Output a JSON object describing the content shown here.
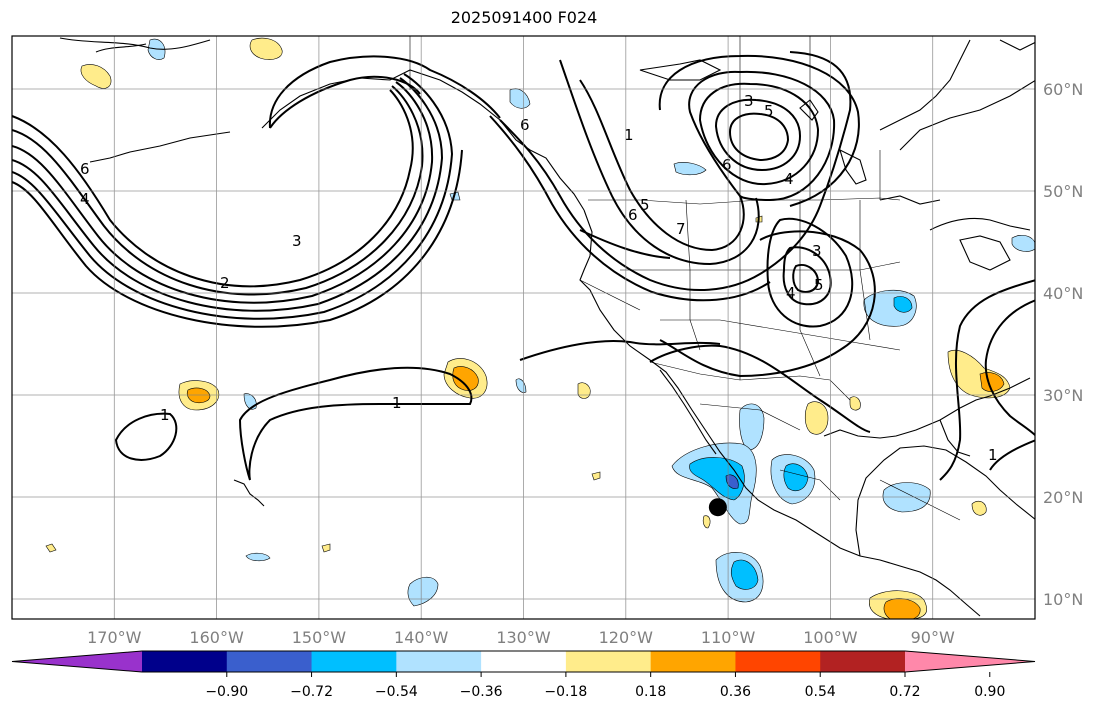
{
  "title": "2025091400 F024",
  "map": {
    "lon_range": [
      -180,
      -80
    ],
    "lat_range": [
      8,
      65
    ],
    "lat_labels": [
      "60°N",
      "50°N",
      "40°N",
      "30°N",
      "20°N",
      "10°N"
    ],
    "lon_labels": [
      "170°W",
      "160°W",
      "150°W",
      "140°W",
      "130°W",
      "120°W",
      "110°W",
      "100°W",
      "90°W"
    ],
    "contour_labels": [
      "1",
      "2",
      "3",
      "4",
      "5",
      "6",
      "7"
    ],
    "marker": {
      "lon": -111,
      "lat": 19
    },
    "grid": true
  },
  "colorbar": {
    "ticks": [
      "−0.90",
      "−0.72",
      "−0.54",
      "−0.36",
      "−0.18",
      "0.18",
      "0.36",
      "0.54",
      "0.72",
      "0.90"
    ],
    "colors": [
      "#9932cc",
      "#00008b",
      "#3a5fcd",
      "#00bfff",
      "#b0e2ff",
      "#ffffff",
      "#ffec8b",
      "#ffa500",
      "#ff4500",
      "#b22222",
      "#ff88aa"
    ]
  }
}
